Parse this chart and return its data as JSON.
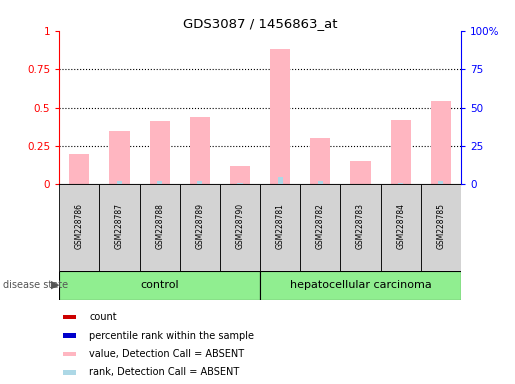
{
  "title": "GDS3087 / 1456863_at",
  "samples": [
    "GSM228786",
    "GSM228787",
    "GSM228788",
    "GSM228789",
    "GSM228790",
    "GSM228781",
    "GSM228782",
    "GSM228783",
    "GSM228784",
    "GSM228785"
  ],
  "pink_bars": [
    0.2,
    0.35,
    0.41,
    0.44,
    0.12,
    0.88,
    0.3,
    0.15,
    0.42,
    0.54
  ],
  "blue_bars": [
    0.0,
    0.02,
    0.02,
    0.02,
    0.01,
    0.05,
    0.02,
    0.0,
    0.01,
    0.02
  ],
  "group_box_color": "#d3d3d3",
  "ylim": [
    0,
    1.0
  ],
  "yticks": [
    0,
    0.25,
    0.5,
    0.75,
    1.0
  ],
  "ytick_labels_left": [
    "0",
    "0.25",
    "0.5",
    "0.75",
    "1"
  ],
  "ytick_labels_right": [
    "0",
    "25",
    "50",
    "75",
    "100%"
  ],
  "left_axis_color": "red",
  "right_axis_color": "blue",
  "pink_bar_color": "#FFB6C1",
  "blue_bar_color": "#ADD8E6",
  "legend_items": [
    {
      "color": "#CC0000",
      "label": "count"
    },
    {
      "color": "#0000CC",
      "label": "percentile rank within the sample"
    },
    {
      "color": "#FFB6C1",
      "label": "value, Detection Call = ABSENT"
    },
    {
      "color": "#ADD8E6",
      "label": "rank, Detection Call = ABSENT"
    }
  ],
  "disease_state_label": "disease state",
  "control_label": "control",
  "cancer_label": "hepatocellular carcinoma",
  "bar_width": 0.5,
  "green_color": "#90EE90"
}
